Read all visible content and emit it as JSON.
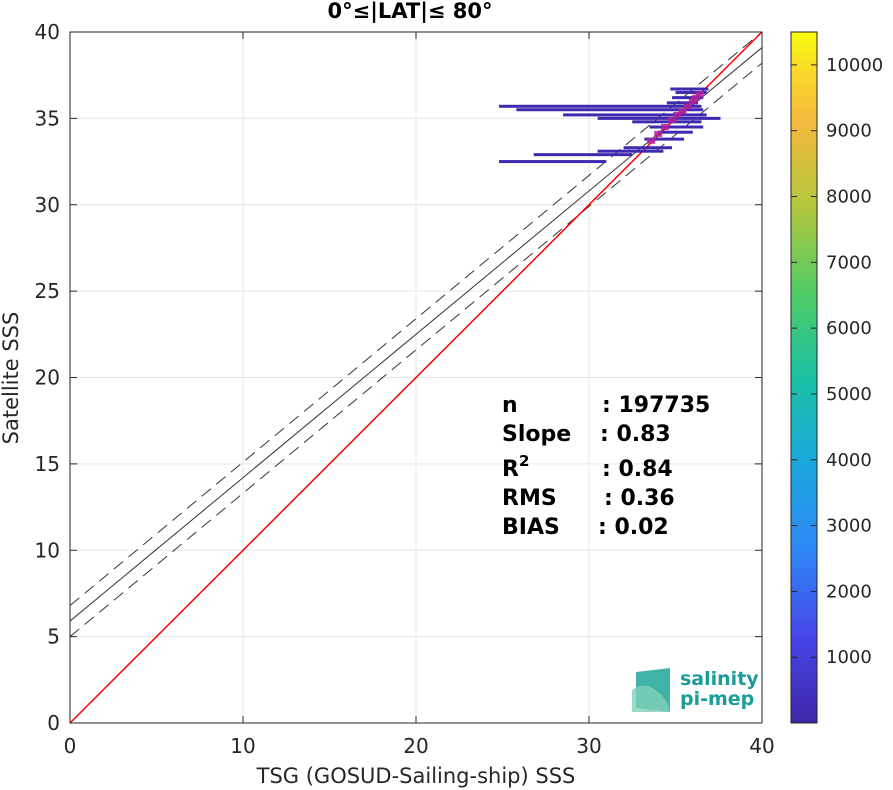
{
  "chart_data": {
    "type": "scatter",
    "title": "0°≤|LAT|≤ 80°",
    "xlabel": "TSG (GOSUD-Sailing-ship) SSS",
    "ylabel": "Satellite SSS",
    "xlim": [
      0,
      40
    ],
    "ylim": [
      0,
      40
    ],
    "xticks": [
      "0",
      "10",
      "20",
      "30",
      "40"
    ],
    "yticks": [
      "0",
      "5",
      "10",
      "15",
      "20",
      "25",
      "30",
      "35",
      "40"
    ],
    "grid": true,
    "identity_line": {
      "color": "#ff0000",
      "x": [
        0,
        40
      ],
      "y": [
        0,
        40
      ]
    },
    "fit_line": {
      "color": "#333333",
      "intercept": 5.9,
      "slope": 0.83
    },
    "fit_bounds": [
      {
        "intercept": 6.8,
        "slope": 0.83
      },
      {
        "intercept": 5.0,
        "slope": 0.83
      }
    ],
    "density_segments": [
      {
        "x0": 24.8,
        "x1": 36.5,
        "y": 35.7
      },
      {
        "x0": 25.8,
        "x1": 36.6,
        "y": 35.5
      },
      {
        "x0": 28.5,
        "x1": 36.8,
        "y": 35.2
      },
      {
        "x0": 30.5,
        "x1": 37.6,
        "y": 35.0
      },
      {
        "x0": 32.5,
        "x1": 36.5,
        "y": 34.8
      },
      {
        "x0": 33.5,
        "x1": 36.6,
        "y": 34.5
      },
      {
        "x0": 34.0,
        "x1": 36.0,
        "y": 34.2
      },
      {
        "x0": 33.2,
        "x1": 35.5,
        "y": 33.8
      },
      {
        "x0": 32.0,
        "x1": 34.8,
        "y": 33.3
      },
      {
        "x0": 30.5,
        "x1": 34.3,
        "y": 33.1
      },
      {
        "x0": 26.8,
        "x1": 32.5,
        "y": 32.9
      },
      {
        "x0": 24.8,
        "x1": 31.0,
        "y": 32.5
      },
      {
        "x0": 35.0,
        "x1": 36.8,
        "y": 36.5
      },
      {
        "x0": 34.8,
        "x1": 36.6,
        "y": 36.2
      },
      {
        "x0": 34.5,
        "x1": 36.3,
        "y": 35.9
      },
      {
        "x0": 34.7,
        "x1": 36.9,
        "y": 36.7
      }
    ],
    "density_core": [
      {
        "x": 33.6,
        "y": 33.7
      },
      {
        "x": 34.0,
        "y": 34.1
      },
      {
        "x": 34.4,
        "y": 34.5
      },
      {
        "x": 34.8,
        "y": 34.9
      },
      {
        "x": 35.1,
        "y": 35.2
      },
      {
        "x": 35.4,
        "y": 35.4
      },
      {
        "x": 35.7,
        "y": 35.7
      },
      {
        "x": 36.0,
        "y": 36.0
      },
      {
        "x": 36.2,
        "y": 36.2
      },
      {
        "x": 36.4,
        "y": 36.4
      }
    ],
    "colorbar": {
      "min": 0,
      "max": 10500,
      "ticks": [
        "1000",
        "2000",
        "3000",
        "4000",
        "5000",
        "6000",
        "7000",
        "8000",
        "9000",
        "10000"
      ],
      "colors": [
        "#3e26a8",
        "#4744e8",
        "#2e87f7",
        "#1aa9db",
        "#1ac1a3",
        "#4fcb66",
        "#b4c73c",
        "#f4b93c",
        "#f9d72a",
        "#f9fb0e"
      ]
    },
    "stats": [
      {
        "label": "n",
        "value": ": 197735"
      },
      {
        "label": "Slope",
        "value": ": 0.83"
      },
      {
        "label": "R",
        "sup": "2",
        "value": ": 0.84"
      },
      {
        "label": "RMS",
        "value": ": 0.36"
      },
      {
        "label": "BIAS",
        "value": ": 0.02"
      }
    ],
    "logo": {
      "line1": "salinity",
      "line2": "pi-mep"
    }
  }
}
